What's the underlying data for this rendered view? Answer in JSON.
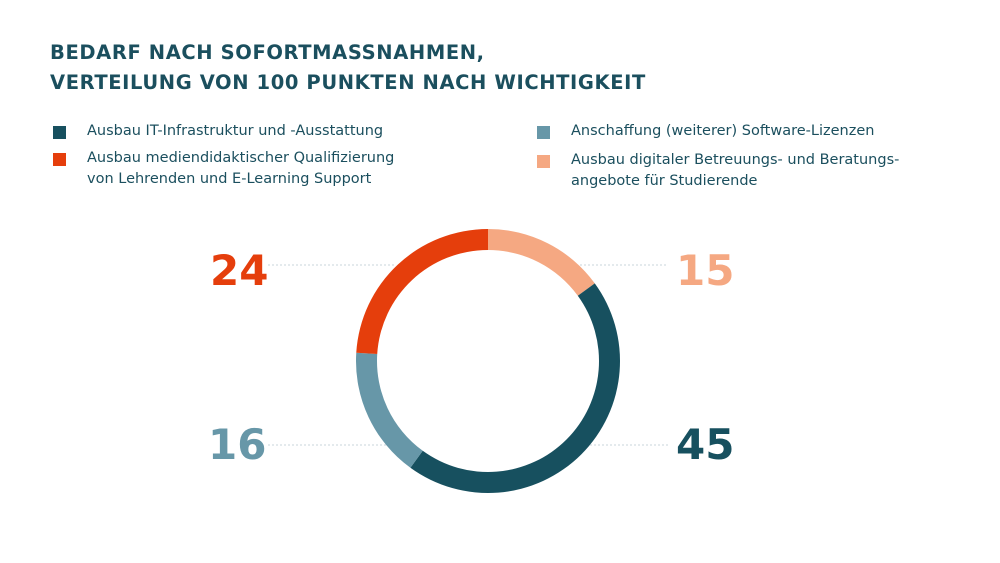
{
  "chart_data": {
    "type": "pie",
    "style": "donut",
    "title_lines": [
      "BEDARF NACH SOFORTMASSNAHMEN,",
      "VERTEILUNG VON 100 PUNKTEN NACH WICHTIGKEIT"
    ],
    "legend": [
      {
        "label_lines": [
          "Ausbau IT-Infrastruktur und -Ausstattung"
        ],
        "color": "#17505f"
      },
      {
        "label_lines": [
          "Ausbau mediendidaktischer Qualifizierung",
          "von Lehrenden und E-Learning Support"
        ],
        "color": "#e53e0c"
      },
      {
        "label_lines": [
          "Anschaffung (weiterer) Software-Lizenzen"
        ],
        "color": "#6797a8"
      },
      {
        "label_lines": [
          "Ausbau digitaler Betreuungs- und Beratungs-",
          "angebote für Studierende"
        ],
        "color": "#f5a882"
      }
    ],
    "slices_clockwise_from_top": [
      {
        "series": "Ausbau digitaler Betreuungs- und Beratungsangebote für Studierende",
        "value": 15,
        "label": "15",
        "color": "#f5a882"
      },
      {
        "series": "Ausbau IT-Infrastruktur und -Ausstattung",
        "value": 45,
        "label": "45",
        "color": "#17505f"
      },
      {
        "series": "Anschaffung (weiterer) Software-Lizenzen",
        "value": 16,
        "label": "16",
        "color": "#6797a8"
      },
      {
        "series": "Ausbau mediendidaktischer Qualifizierung von Lehrenden und E-Learning Support",
        "value": 24,
        "label": "24",
        "color": "#e53e0c"
      }
    ],
    "total": 100
  }
}
